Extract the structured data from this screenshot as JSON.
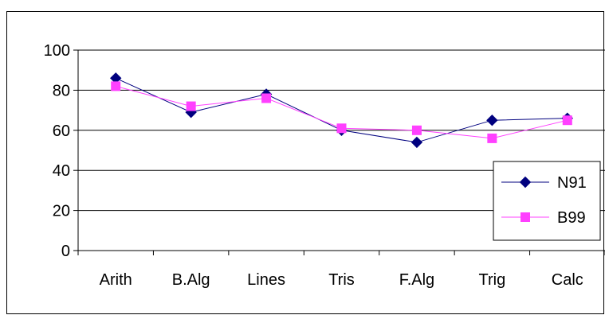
{
  "chart_data": {
    "type": "line",
    "title": "",
    "xlabel": "",
    "ylabel": "",
    "categories": [
      "Arith",
      "B.Alg",
      "Lines",
      "Tris",
      "F.Alg",
      "Trig",
      "Calc"
    ],
    "ylim": [
      0,
      100
    ],
    "yticks": [
      0,
      20,
      40,
      60,
      80,
      100
    ],
    "ytick_labels": [
      "0",
      "20",
      "40",
      "60",
      "80",
      "100"
    ],
    "grid": true,
    "legend": "right",
    "series": [
      {
        "name": "N91",
        "color": "#00007F",
        "marker": "diamond",
        "values": [
          86,
          69,
          78,
          60,
          54,
          65,
          66
        ]
      },
      {
        "name": "B99",
        "color": "#FF40FF",
        "marker": "square",
        "values": [
          82,
          72,
          76,
          61,
          60,
          56,
          65
        ]
      }
    ]
  }
}
